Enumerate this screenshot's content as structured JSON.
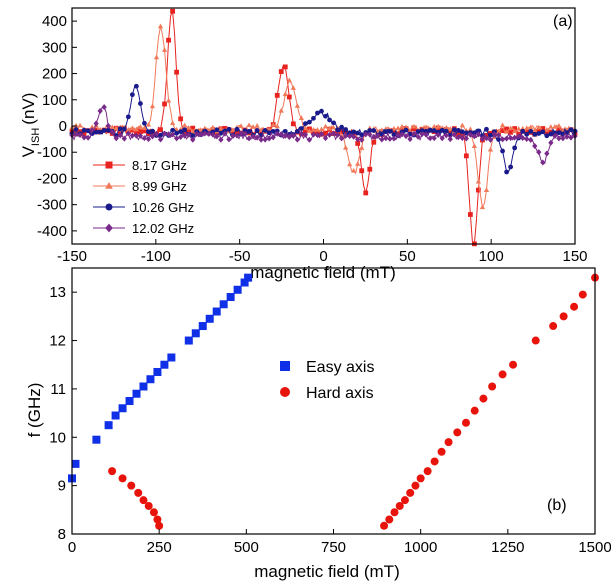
{
  "chart_data": [
    {
      "type": "line",
      "panel_label": "(a)",
      "xlabel": "magnetic field (mT)",
      "ylabel_main": "V",
      "ylabel_sub": "ISH",
      "ylabel_unit": "(nV)",
      "xlim": [
        -150,
        150
      ],
      "ylim": [
        -450,
        450
      ],
      "x_ticks": [
        -150,
        -100,
        -50,
        0,
        50,
        100,
        150
      ],
      "y_ticks": [
        -400,
        -300,
        -200,
        -100,
        0,
        100,
        200,
        300,
        400
      ],
      "legend_position": "bottom-left",
      "series": [
        {
          "name": "8.17 GHz",
          "color": "#e8231f",
          "marker": "square",
          "baseline": -20,
          "peaks": [
            {
              "x": -90.5,
              "y": 440,
              "w": 2.5
            },
            {
              "x": -24,
              "y": 240,
              "w": 3
            },
            {
              "x": 25,
              "y": -250,
              "w": 2.5
            },
            {
              "x": 89.5,
              "y": -450,
              "w": 2.5
            }
          ]
        },
        {
          "name": "8.99 GHz",
          "color": "#f07a5a",
          "marker": "triangle",
          "baseline": -10,
          "peaks": [
            {
              "x": -97,
              "y": 370,
              "w": 3
            },
            {
              "x": -20,
              "y": 180,
              "w": 3.5
            },
            {
              "x": 18,
              "y": -180,
              "w": 3.5
            },
            {
              "x": 95,
              "y": -300,
              "w": 3
            }
          ]
        },
        {
          "name": "10.26 GHz",
          "color": "#1a1a8c",
          "marker": "circle",
          "baseline": -25,
          "peaks": [
            {
              "x": -112,
              "y": 160,
              "w": 3
            },
            {
              "x": -2,
              "y": 55,
              "w": 6
            },
            {
              "x": 110,
              "y": -170,
              "w": 3
            }
          ]
        },
        {
          "name": "12.02 GHz",
          "color": "#7a2a8a",
          "marker": "diamond",
          "baseline": -40,
          "peaks": [
            {
              "x": -132,
              "y": 70,
              "w": 3
            },
            {
              "x": 131,
              "y": -140,
              "w": 3
            }
          ]
        }
      ]
    },
    {
      "type": "scatter",
      "panel_label": "(b)",
      "xlabel": "magnetic field (mT)",
      "ylabel": "f (GHz)",
      "xlim": [
        0,
        1500
      ],
      "ylim": [
        8,
        13.5
      ],
      "x_ticks": [
        0,
        250,
        500,
        750,
        1000,
        1250,
        1500
      ],
      "y_ticks": [
        8,
        9,
        10,
        11,
        12,
        13
      ],
      "legend_position": "center",
      "series": [
        {
          "name": "Easy axis",
          "color": "#1030e8",
          "marker": "square",
          "points": [
            [
              0,
              9.15
            ],
            [
              10,
              9.45
            ],
            [
              70,
              9.95
            ],
            [
              105,
              10.25
            ],
            [
              125,
              10.45
            ],
            [
              145,
              10.6
            ],
            [
              165,
              10.75
            ],
            [
              185,
              10.9
            ],
            [
              205,
              11.05
            ],
            [
              225,
              11.2
            ],
            [
              245,
              11.35
            ],
            [
              265,
              11.5
            ],
            [
              285,
              11.65
            ],
            [
              335,
              12.0
            ],
            [
              355,
              12.15
            ],
            [
              375,
              12.3
            ],
            [
              395,
              12.45
            ],
            [
              415,
              12.6
            ],
            [
              435,
              12.75
            ],
            [
              455,
              12.9
            ],
            [
              475,
              13.05
            ],
            [
              495,
              13.2
            ],
            [
              505,
              13.3
            ]
          ]
        },
        {
          "name": "Hard axis",
          "color": "#e8140c",
          "marker": "circle",
          "points": [
            [
              115,
              9.3
            ],
            [
              145,
              9.15
            ],
            [
              170,
              9.0
            ],
            [
              190,
              8.85
            ],
            [
              205,
              8.7
            ],
            [
              220,
              8.58
            ],
            [
              235,
              8.45
            ],
            [
              245,
              8.3
            ],
            [
              250,
              8.17
            ],
            [
              895,
              8.17
            ],
            [
              910,
              8.3
            ],
            [
              925,
              8.45
            ],
            [
              940,
              8.58
            ],
            [
              955,
              8.7
            ],
            [
              970,
              8.85
            ],
            [
              985,
              9.0
            ],
            [
              1000,
              9.15
            ],
            [
              1020,
              9.3
            ],
            [
              1040,
              9.5
            ],
            [
              1060,
              9.7
            ],
            [
              1080,
              9.9
            ],
            [
              1105,
              10.1
            ],
            [
              1130,
              10.3
            ],
            [
              1155,
              10.55
            ],
            [
              1180,
              10.8
            ],
            [
              1205,
              11.05
            ],
            [
              1235,
              11.3
            ],
            [
              1265,
              11.5
            ],
            [
              1330,
              12.0
            ],
            [
              1380,
              12.3
            ],
            [
              1410,
              12.5
            ],
            [
              1440,
              12.7
            ],
            [
              1465,
              12.95
            ],
            [
              1500,
              13.3
            ]
          ]
        }
      ]
    }
  ]
}
